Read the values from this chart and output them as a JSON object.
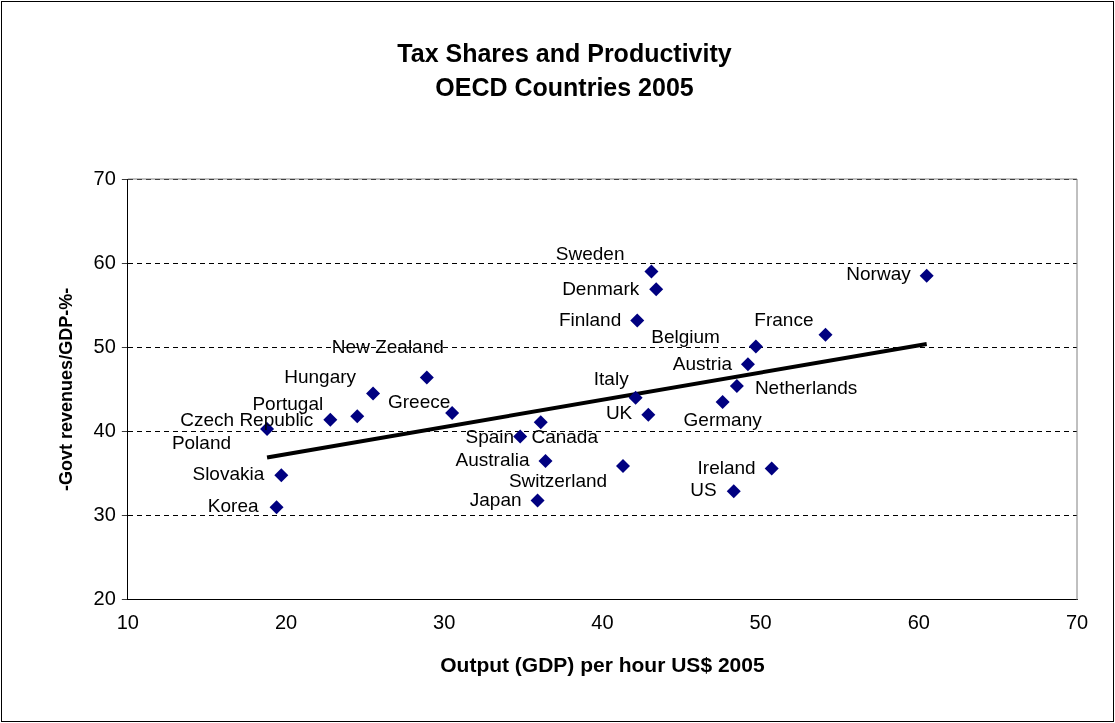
{
  "chart_data": {
    "type": "scatter",
    "title": "Tax Shares and Productivity",
    "subtitle": "OECD Countries 2005",
    "xlabel": "Output (GDP) per hour US$ 2005",
    "ylabel": "-Govt revenues/GDP-%-",
    "xlim": [
      10,
      70
    ],
    "xticks": [
      10,
      20,
      30,
      40,
      50,
      60,
      70
    ],
    "ylim": [
      20,
      70
    ],
    "yticks": [
      20,
      30,
      40,
      50,
      60,
      70
    ],
    "grid": "y",
    "legend": false,
    "marker": "diamond",
    "series": [
      {
        "color": "#000080",
        "x": [
          43.1,
          43.4,
          42.2,
          60.5,
          54.1,
          49.7,
          49.2,
          48.5,
          47.6,
          42.1,
          42.9,
          50.7,
          48.3,
          41.3,
          34.8,
          36.1,
          36.4,
          35.9,
          28.9,
          30.5,
          25.5,
          24.5,
          22.8,
          18.8,
          19.7,
          19.4
        ],
        "values": [
          59.0,
          56.9,
          53.2,
          58.5,
          51.5,
          50.1,
          48.0,
          45.4,
          43.5,
          44.0,
          42.0,
          35.6,
          32.9,
          35.9,
          39.4,
          41.1,
          36.5,
          31.8,
          46.4,
          42.2,
          44.5,
          41.8,
          41.4,
          40.3,
          34.8,
          31.0
        ]
      },
      {
        "type": "line",
        "marker": "none",
        "color": "#000000",
        "x": [
          18.8,
          60.5
        ],
        "values": [
          36.9,
          50.4
        ]
      }
    ],
    "annotations": [
      {
        "text": "Sweden",
        "x": 43.1,
        "y": 59.0
      },
      {
        "text": "Denmark",
        "x": 43.4,
        "y": 56.9
      },
      {
        "text": "Finland",
        "x": 42.2,
        "y": 53.2
      },
      {
        "text": "Norway",
        "x": 60.5,
        "y": 58.5
      },
      {
        "text": "France",
        "x": 54.1,
        "y": 51.5
      },
      {
        "text": "Belgium",
        "x": 49.7,
        "y": 50.1
      },
      {
        "text": "Austria",
        "x": 49.2,
        "y": 48.0
      },
      {
        "text": "Netherlands",
        "x": 48.5,
        "y": 45.4
      },
      {
        "text": "Germany",
        "x": 47.6,
        "y": 43.5
      },
      {
        "text": "Italy",
        "x": 42.1,
        "y": 44.0
      },
      {
        "text": "UK",
        "x": 42.9,
        "y": 42.0
      },
      {
        "text": "Ireland",
        "x": 50.7,
        "y": 35.6
      },
      {
        "text": "US",
        "x": 48.3,
        "y": 32.9
      },
      {
        "text": "Switzerland",
        "x": 41.3,
        "y": 35.9
      },
      {
        "text": "Spain",
        "x": 34.8,
        "y": 39.4
      },
      {
        "text": "Canada",
        "x": 36.1,
        "y": 41.1
      },
      {
        "text": "Australia",
        "x": 36.4,
        "y": 36.5
      },
      {
        "text": "Japan",
        "x": 35.9,
        "y": 31.8
      },
      {
        "text": "New Zealand",
        "x": 28.9,
        "y": 46.4
      },
      {
        "text": "Greece",
        "x": 30.5,
        "y": 42.2
      },
      {
        "text": "Hungary",
        "x": 25.5,
        "y": 44.5
      },
      {
        "text": "Portugal",
        "x": 24.5,
        "y": 41.8
      },
      {
        "text": "Czech Republic",
        "x": 22.8,
        "y": 41.4
      },
      {
        "text": "Poland",
        "x": 18.8,
        "y": 40.3
      },
      {
        "text": "Slovakia",
        "x": 19.7,
        "y": 34.8
      },
      {
        "text": "Korea",
        "x": 19.4,
        "y": 31.0
      }
    ]
  }
}
